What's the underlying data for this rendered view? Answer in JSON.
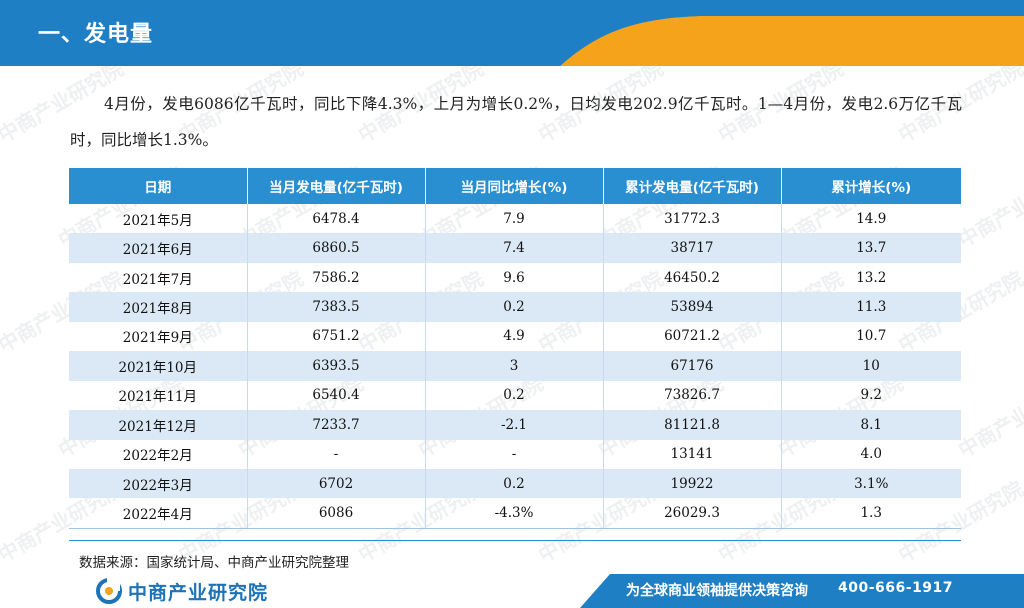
{
  "header": {
    "title": "一、发电量"
  },
  "intro": "4月份，发电6086亿千瓦时，同比下降4.3%，上月为增长0.2%，日均发电202.9亿千瓦时。1—4月份，发电2.6万亿千瓦时，同比增长1.3%。",
  "table": {
    "columns": [
      "日期",
      "当月发电量(亿千瓦时)",
      "当月同比增长(%)",
      "累计发电量(亿千瓦时)",
      "累计增长(%)"
    ],
    "rows": [
      [
        "2021年5月",
        "6478.4",
        "7.9",
        "31772.3",
        "14.9"
      ],
      [
        "2021年6月",
        "6860.5",
        "7.4",
        "38717",
        "13.7"
      ],
      [
        "2021年7月",
        "7586.2",
        "9.6",
        "46450.2",
        "13.2"
      ],
      [
        "2021年8月",
        "7383.5",
        "0.2",
        "53894",
        "11.3"
      ],
      [
        "2021年9月",
        "6751.2",
        "4.9",
        "60721.2",
        "10.7"
      ],
      [
        "2021年10月",
        "6393.5",
        "3",
        "67176",
        "10"
      ],
      [
        "2021年11月",
        "6540.4",
        "0.2",
        "73826.7",
        "9.2"
      ],
      [
        "2021年12月",
        "7233.7",
        "-2.1",
        "81121.8",
        "8.1"
      ],
      [
        "2022年2月",
        "-",
        "-",
        "13141",
        "4.0"
      ],
      [
        "2022年3月",
        "6702",
        "0.2",
        "19922",
        "3.1%"
      ],
      [
        "2022年4月",
        "6086",
        "-4.3%",
        "26029.3",
        "1.3"
      ]
    ]
  },
  "source": "数据来源：国家统计局、中商产业研究院整理",
  "footer": {
    "logo_text": "中商产业研究院",
    "slogan": "为全球商业领袖提供决策咨询",
    "phone": "400-666-1917"
  },
  "watermark": {
    "text": "中商产业研究院"
  },
  "colors": {
    "header_blue": "#1f7fc4",
    "accent_orange": "#f5a31a",
    "table_header": "#2a8fd0",
    "row_alt": "#dbe9f6"
  }
}
